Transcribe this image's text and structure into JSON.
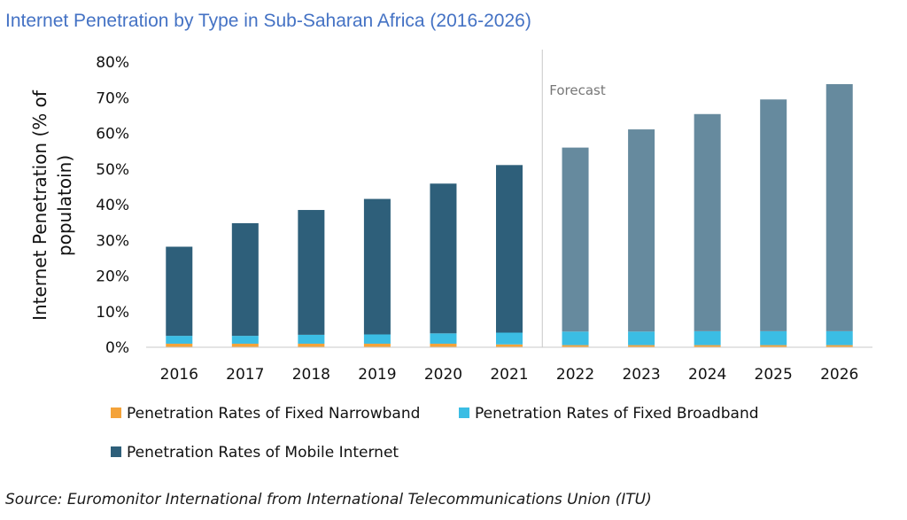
{
  "chart_data": {
    "type": "bar",
    "stacked": true,
    "title": "Internet Penetration by Type in Sub-Saharan Africa (2016-2026)",
    "xlabel": "",
    "ylabel_lines": [
      "Internet Penetration (% of",
      "populatoin)"
    ],
    "ylim": [
      0,
      80
    ],
    "yticks": [
      "0%",
      "10%",
      "20%",
      "30%",
      "40%",
      "50%",
      "60%",
      "70%",
      "80%"
    ],
    "categories": [
      "2016",
      "2017",
      "2018",
      "2019",
      "2020",
      "2021",
      "2022",
      "2023",
      "2024",
      "2025",
      "2026"
    ],
    "forecast_label": "Forecast",
    "forecast_start_index": 6,
    "series": [
      {
        "name": "Penetration Rates of Fixed Narrowband",
        "color": "#F4A33A",
        "values": [
          1.0,
          1.0,
          1.0,
          1.0,
          1.0,
          0.8,
          0.6,
          0.6,
          0.6,
          0.6,
          0.6
        ]
      },
      {
        "name": "Penetration Rates of Fixed Broadband",
        "color": "#3BBDE4",
        "values": [
          2.2,
          2.2,
          2.5,
          2.6,
          2.9,
          3.3,
          3.8,
          3.8,
          3.9,
          3.9,
          3.9
        ]
      },
      {
        "name": "Penetration Rates of Mobile Internet",
        "color": "#2E5F7A",
        "forecast_color": "#668A9E",
        "values": [
          25.0,
          31.6,
          35.0,
          38.0,
          42.0,
          47.0,
          51.6,
          56.7,
          60.9,
          65.0,
          69.3
        ]
      }
    ]
  },
  "source": "Source: Euromonitor International from International Telecommunications Union (ITU)"
}
